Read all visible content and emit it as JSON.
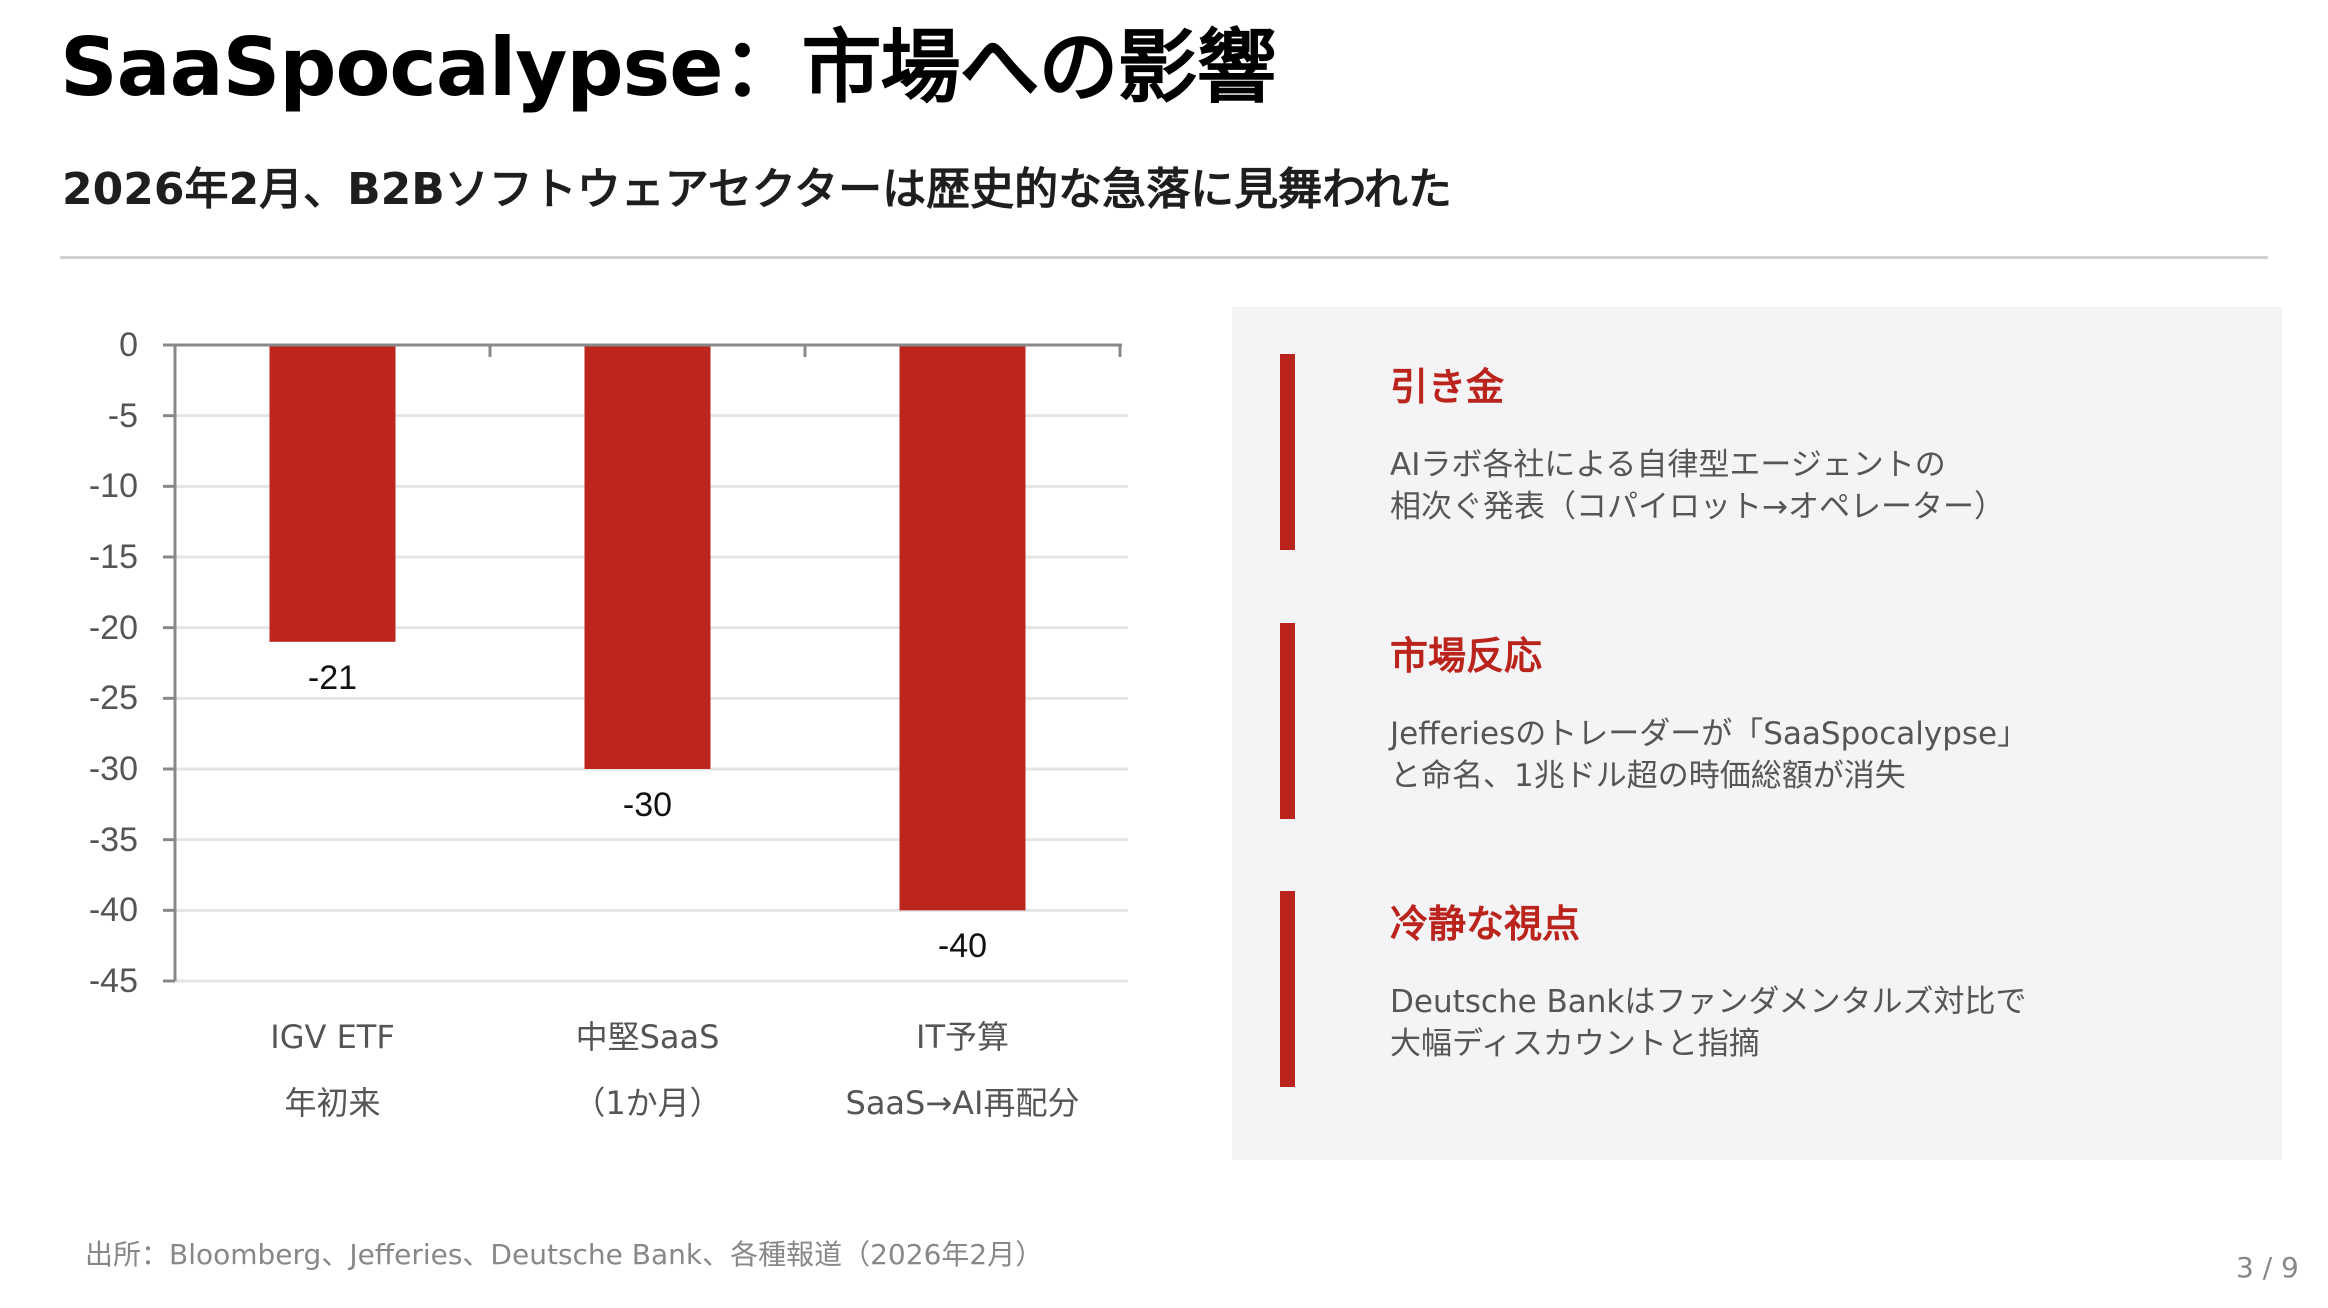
{
  "header": {
    "title": "SaaSpocalypse：市場への影響",
    "subtitle": "2026年2月、B2Bソフトウェアセクターは歴史的な急落に見舞われた"
  },
  "chart_data": {
    "type": "bar",
    "title": "",
    "xlabel": "",
    "ylabel": "",
    "categories": [
      [
        "IGV ETF",
        "年初来"
      ],
      [
        "中堅SaaS",
        "（1か月）"
      ],
      [
        "IT予算",
        "SaaS→AI再配分"
      ]
    ],
    "values": [
      -21,
      -30,
      -40
    ],
    "data_labels": [
      "-21",
      "-30",
      "-40"
    ],
    "ylim": [
      -45,
      0
    ],
    "yticks": [
      0,
      -5,
      -10,
      -15,
      -20,
      -25,
      -30,
      -35,
      -40,
      -45
    ],
    "grid": true,
    "legend": "none",
    "bar_color": "#bd261d"
  },
  "panel": {
    "sections": [
      {
        "heading": "引き金",
        "lines": [
          "AIラボ各社による自律型エージェントの",
          "相次ぐ発表（コパイロット→オペレーター）"
        ]
      },
      {
        "heading": "市場反応",
        "lines": [
          "Jefferiesのトレーダーが「SaaSpocalypse」",
          "と命名、1兆ドル超の時価総額が消失"
        ]
      },
      {
        "heading": "冷静な視点",
        "lines": [
          "Deutsche Bankはファンダメンタルズ対比で",
          "大幅ディスカウントと指摘"
        ]
      }
    ]
  },
  "footer": {
    "source": "出所：Bloomberg、Jefferies、Deutsche Bank、各種報道（2026年2月）",
    "page": "3 / 9"
  },
  "colors": {
    "accent": "#bb241c",
    "panel_bg": "#f4f4f6",
    "divider": "#d2d2d2"
  }
}
